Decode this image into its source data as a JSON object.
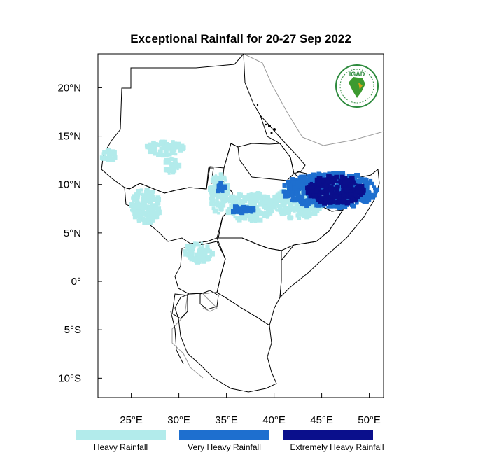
{
  "title": "Exceptional Rainfall for 20-27 Sep 2022",
  "logo": {
    "text": "IGAD",
    "colors": {
      "ring": "#2e8b3e",
      "africa": "#3c9a2f",
      "gold": "#d8a21a"
    }
  },
  "axes": {
    "lon_range": [
      21.5,
      51.5
    ],
    "lat_range": [
      -12,
      23.5
    ],
    "x_ticks": [
      {
        "value": 25,
        "label": "25°E"
      },
      {
        "value": 30,
        "label": "30°E"
      },
      {
        "value": 35,
        "label": "35°E"
      },
      {
        "value": 40,
        "label": "40°E"
      },
      {
        "value": 45,
        "label": "45°E"
      },
      {
        "value": 50,
        "label": "50°E"
      }
    ],
    "y_ticks": [
      {
        "value": 20,
        "label": "20°N"
      },
      {
        "value": 15,
        "label": "15°N"
      },
      {
        "value": 10,
        "label": "10°N"
      },
      {
        "value": 5,
        "label": "5°N"
      },
      {
        "value": 0,
        "label": "0°"
      },
      {
        "value": -5,
        "label": "5°S"
      },
      {
        "value": -10,
        "label": "10°S"
      }
    ]
  },
  "legend": [
    {
      "label": "Heavy Rainfall",
      "color": "#b2ebeb"
    },
    {
      "label": "Very Heavy Rainfall",
      "color": "#1e6fcf"
    },
    {
      "label": "Extremely Heavy Rainfall",
      "color": "#0a0f8c"
    }
  ],
  "rain_regions": [
    {
      "name": "northern-sudan-light",
      "level": 0,
      "lon": [
        26.5,
        30.5
      ],
      "lat": [
        13.0,
        14.5
      ]
    },
    {
      "name": "western-southsudan-light",
      "level": 0,
      "lon": [
        25.0,
        28.0
      ],
      "lat": [
        6.0,
        9.5
      ]
    },
    {
      "name": "darfur-light",
      "level": 0,
      "lon": [
        21.8,
        23.5
      ],
      "lat": [
        12.5,
        13.5
      ]
    },
    {
      "name": "kordofan-light",
      "level": 0,
      "lon": [
        28.5,
        30.0
      ],
      "lat": [
        11.0,
        12.8
      ]
    },
    {
      "name": "ethiopia-west-light",
      "level": 0,
      "lon": [
        33.3,
        35.2
      ],
      "lat": [
        7.0,
        11.2
      ]
    },
    {
      "name": "ethiopia-central-light",
      "level": 0,
      "lon": [
        35.0,
        40.0
      ],
      "lat": [
        6.2,
        9.2
      ]
    },
    {
      "name": "ethiopia-east-light",
      "level": 0,
      "lon": [
        40.0,
        45.0
      ],
      "lat": [
        6.5,
        9.8
      ]
    },
    {
      "name": "uganda-north-light",
      "level": 0,
      "lon": [
        30.6,
        33.5
      ],
      "lat": [
        2.0,
        4.0
      ]
    },
    {
      "name": "ethiopia-west-veryheavy",
      "level": 1,
      "lon": [
        34.0,
        34.8
      ],
      "lat": [
        9.2,
        10.4
      ]
    },
    {
      "name": "ethiopia-southwest-veryheavy",
      "level": 1,
      "lon": [
        35.5,
        38.0
      ],
      "lat": [
        7.0,
        7.8
      ]
    },
    {
      "name": "somaliland-veryheavy",
      "level": 1,
      "lon": [
        41.0,
        50.8
      ],
      "lat": [
        7.6,
        11.2
      ]
    },
    {
      "name": "somaliland-extreme",
      "level": 2,
      "lon": [
        43.5,
        49.5
      ],
      "lat": [
        8.0,
        10.8
      ]
    }
  ]
}
